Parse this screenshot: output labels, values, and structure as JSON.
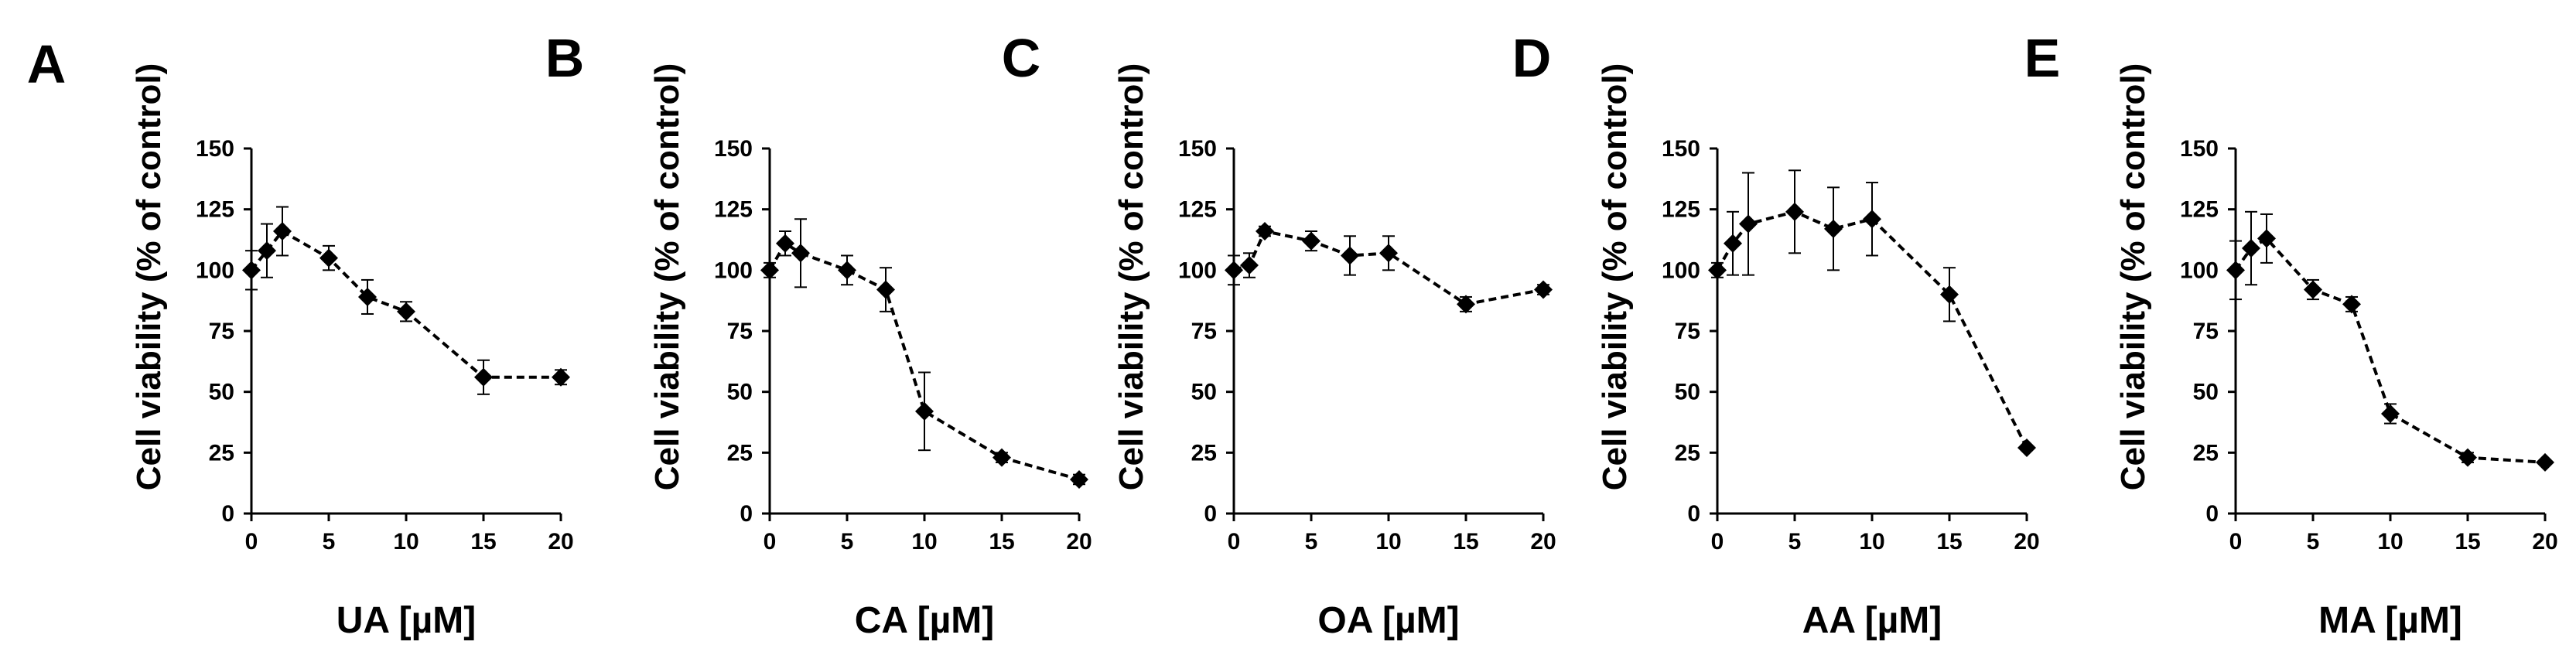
{
  "panel_letters": [
    "A",
    "B",
    "C",
    "D",
    "E"
  ],
  "colors": {
    "ink": "#000000",
    "background": "#ffffff"
  },
  "chart_data": [
    {
      "type": "line",
      "panel": "A",
      "xlabel": "UA [µM]",
      "ylabel": "Cell viability (% of control)",
      "xlim": [
        0,
        20
      ],
      "ylim": [
        0,
        150
      ],
      "xticks": [
        0,
        5,
        10,
        15,
        20
      ],
      "yticks": [
        0,
        25,
        50,
        75,
        100,
        125,
        150
      ],
      "grid": false,
      "marker": "diamond",
      "line_style": "dashed",
      "x": [
        0,
        1,
        2,
        5,
        7.5,
        10,
        15,
        20
      ],
      "y": [
        100,
        108,
        116,
        105,
        89,
        83,
        56,
        56
      ],
      "error": [
        8,
        11,
        10,
        5,
        7,
        4,
        7,
        3
      ]
    },
    {
      "type": "line",
      "panel": "B",
      "xlabel": "CA [µM]",
      "ylabel": "Cell viability (% of control)",
      "xlim": [
        0,
        20
      ],
      "ylim": [
        0,
        150
      ],
      "xticks": [
        0,
        5,
        10,
        15,
        20
      ],
      "yticks": [
        0,
        25,
        50,
        75,
        100,
        125,
        150
      ],
      "grid": false,
      "marker": "diamond",
      "line_style": "dashed",
      "x": [
        0,
        1,
        2,
        5,
        7.5,
        10,
        15,
        20
      ],
      "y": [
        100,
        111,
        107,
        100,
        92,
        42,
        23,
        14
      ],
      "error": [
        3,
        5,
        14,
        6,
        9,
        16,
        2,
        2
      ]
    },
    {
      "type": "line",
      "panel": "C",
      "xlabel": "OA [µM]",
      "ylabel": "Cell viability (% of control)",
      "xlim": [
        0,
        20
      ],
      "ylim": [
        0,
        150
      ],
      "xticks": [
        0,
        5,
        10,
        15,
        20
      ],
      "yticks": [
        0,
        25,
        50,
        75,
        100,
        125,
        150
      ],
      "grid": false,
      "marker": "diamond",
      "line_style": "dashed",
      "x": [
        0,
        1,
        2,
        5,
        7.5,
        10,
        15,
        20
      ],
      "y": [
        100,
        102,
        116,
        112,
        106,
        107,
        86,
        92
      ],
      "error": [
        6,
        5,
        2,
        4,
        8,
        7,
        3,
        2
      ]
    },
    {
      "type": "line",
      "panel": "D",
      "xlabel": "AA [µM]",
      "ylabel": "Cell viability (% of control)",
      "xlim": [
        0,
        20
      ],
      "ylim": [
        0,
        150
      ],
      "xticks": [
        0,
        5,
        10,
        15,
        20
      ],
      "yticks": [
        0,
        25,
        50,
        75,
        100,
        125,
        150
      ],
      "grid": false,
      "marker": "diamond",
      "line_style": "dashed",
      "x": [
        0,
        1,
        2,
        5,
        7.5,
        10,
        15,
        20
      ],
      "y": [
        100,
        111,
        119,
        124,
        117,
        121,
        90,
        27
      ],
      "error": [
        3,
        13,
        21,
        17,
        17,
        15,
        11,
        1
      ]
    },
    {
      "type": "line",
      "panel": "E",
      "xlabel": "MA [µM]",
      "ylabel": "Cell viability (% of control)",
      "xlim": [
        0,
        20
      ],
      "ylim": [
        0,
        150
      ],
      "xticks": [
        0,
        5,
        10,
        15,
        20
      ],
      "yticks": [
        0,
        25,
        50,
        75,
        100,
        125,
        150
      ],
      "grid": false,
      "marker": "diamond",
      "line_style": "dashed",
      "x": [
        0,
        1,
        2,
        5,
        7.5,
        10,
        15,
        20
      ],
      "y": [
        100,
        109,
        113,
        92,
        86,
        41,
        23,
        21
      ],
      "error": [
        12,
        15,
        10,
        4,
        3,
        4,
        2,
        1
      ]
    }
  ]
}
